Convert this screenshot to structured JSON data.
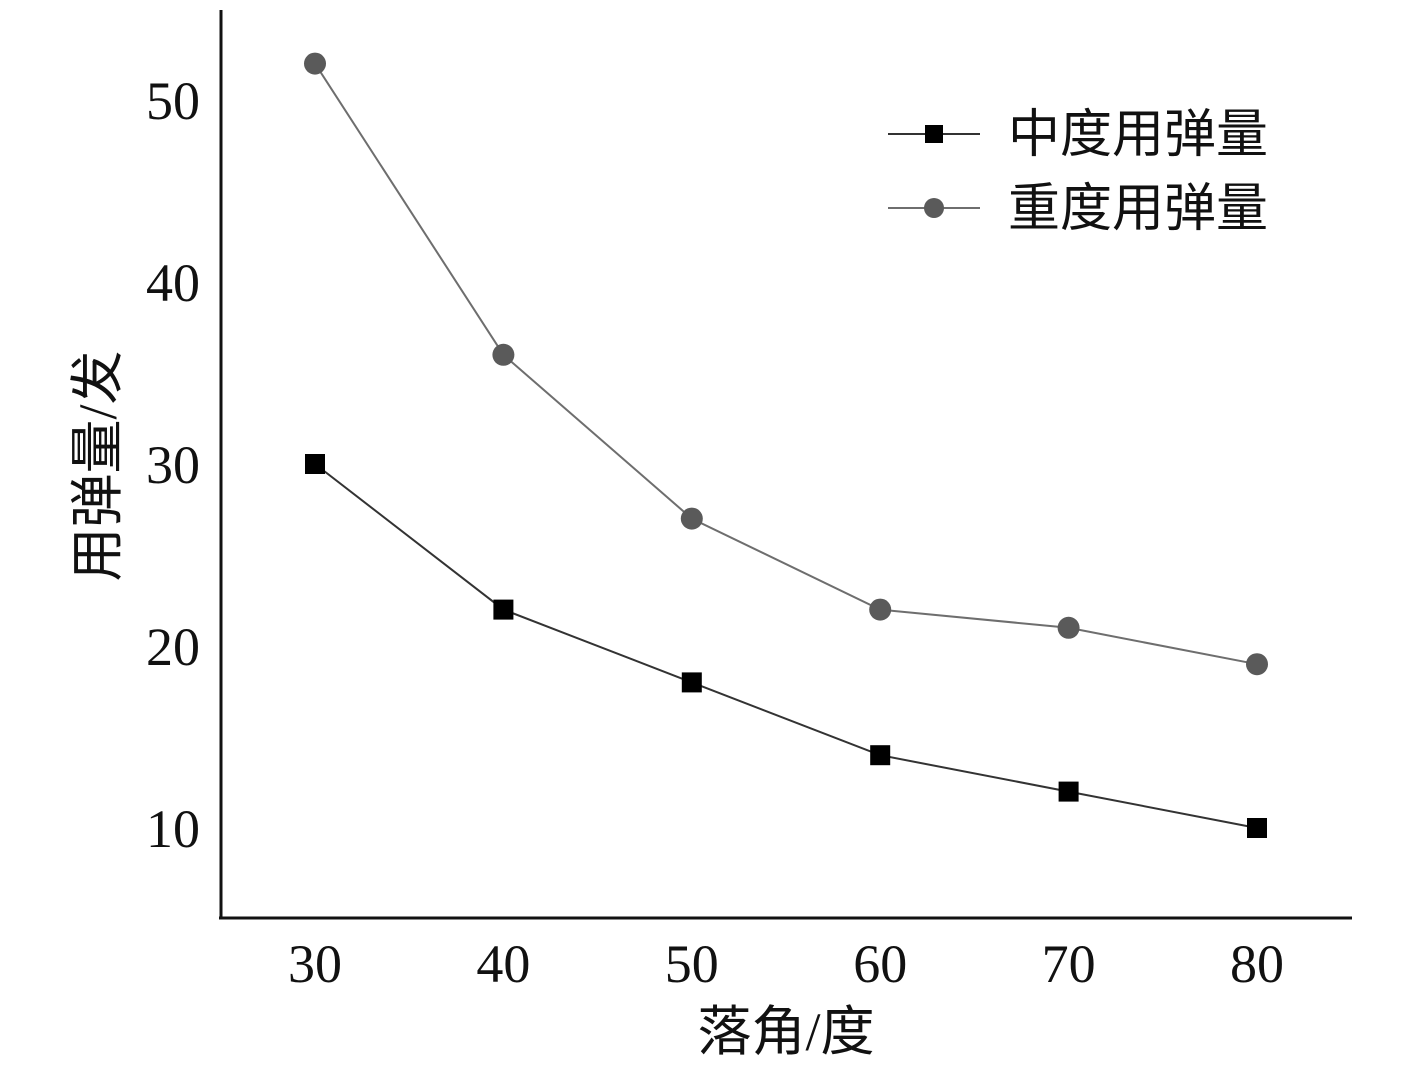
{
  "chart_data": {
    "type": "line",
    "xlabel": "落角/度",
    "ylabel": "用弹量/发",
    "x": [
      30,
      40,
      50,
      60,
      70,
      80
    ],
    "xticks": [
      "30",
      "40",
      "50",
      "60",
      "70",
      "80"
    ],
    "yticks": [
      "10",
      "20",
      "30",
      "40",
      "50"
    ],
    "xlim": [
      25,
      85
    ],
    "ylim": [
      5,
      55
    ],
    "grid": false,
    "legend_position": "top-right",
    "series": [
      {
        "name": "中度用弹量",
        "marker": "square",
        "color": "#000000",
        "line_color": "#333333",
        "values": [
          30,
          22,
          18,
          14,
          12,
          10
        ]
      },
      {
        "name": "重度用弹量",
        "marker": "circle",
        "color": "#5a5a5a",
        "line_color": "#6e6e6e",
        "values": [
          52,
          36,
          27,
          22,
          21,
          19
        ]
      }
    ]
  }
}
